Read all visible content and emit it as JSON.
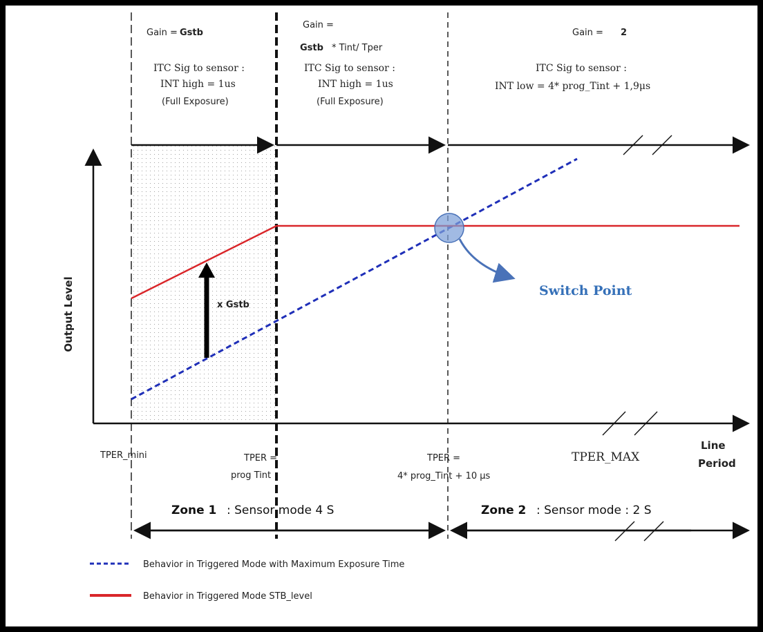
{
  "colors": {
    "background": "#000000",
    "panel": "#ffffff",
    "red_curve": "#d9262a",
    "blue_curve": "#1f2fb8",
    "switch_point": "#4a72b8",
    "axis": "#111111"
  },
  "header": {
    "zone1": {
      "gain_label": "Gain =",
      "gain_value": "Gstb",
      "itc_label": "ITC Sig to sensor :",
      "itc_value": "INT high = 1us",
      "exposure": "(Full Exposure)"
    },
    "mid": {
      "gain_label": "Gain =",
      "gain_value_bold": "Gstb",
      "gain_value_rest": " * Tint/ Tper",
      "itc_label": "ITC Sig to sensor :",
      "itc_value": "INT high = 1us",
      "exposure": "(Full Exposure)"
    },
    "zone2": {
      "gain_label": "Gain =",
      "gain_value": "2",
      "itc_label": "ITC Sig to sensor :",
      "itc_value": "INT low = 4* prog_Tint + 1,9μs"
    }
  },
  "axes": {
    "y_label": "Output   Level",
    "x_label_line1": "Line",
    "x_label_line2": "Period"
  },
  "x_ticks": {
    "tper_mini": "TPER_mini",
    "tper_tint_line1": "TPER =",
    "tper_tint_line2": "prog  Tint",
    "tper_switch_line1": "TPER =",
    "tper_switch_line2": "4* prog_Tint + 10 μs",
    "tper_max": "TPER_MAX"
  },
  "annotations": {
    "gain_arrow_label": "x Gstb",
    "switch_point": "Switch Point"
  },
  "zones": {
    "zone1_title": "Zone 1",
    "zone1_rest": " : Sensor mode  4 S",
    "zone2_title": "Zone 2",
    "zone2_rest": " : Sensor mode : 2 S"
  },
  "legend": {
    "blue": "Behavior in Triggered Mode with Maximum Exposure Time",
    "red": "Behavior in Triggered Mode STB_level"
  }
}
